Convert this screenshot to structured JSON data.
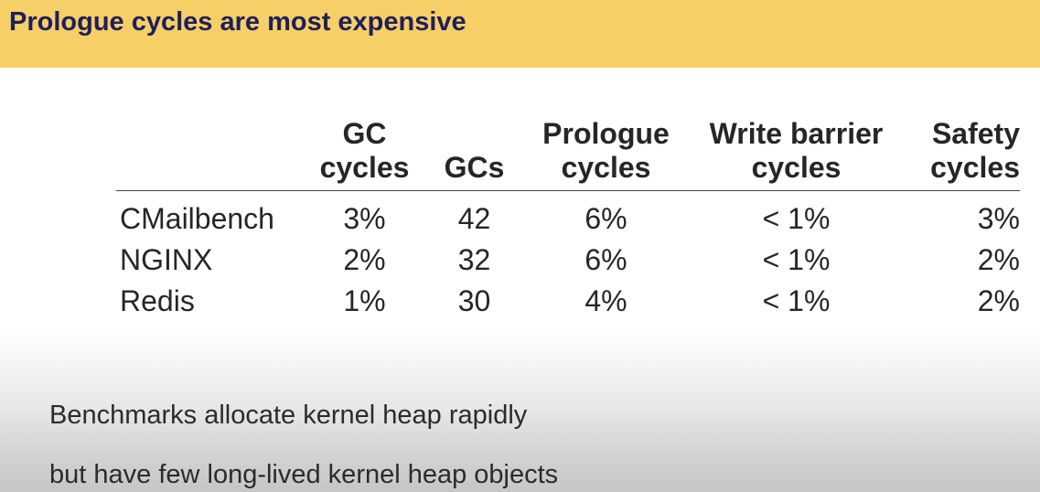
{
  "slide": {
    "title": "Prologue cycles are most expensive"
  },
  "table": {
    "headers": [
      {
        "line1": "",
        "line2": ""
      },
      {
        "line1": "GC",
        "line2": "cycles"
      },
      {
        "line1": "GCs",
        "line2": ""
      },
      {
        "line1": "Prologue",
        "line2": "cycles"
      },
      {
        "line1": "Write barrier",
        "line2": "cycles"
      },
      {
        "line1": "Safety",
        "line2": "cycles"
      }
    ],
    "rows": [
      [
        "CMailbench",
        "3%",
        "42",
        "6%",
        "< 1%",
        "3%"
      ],
      [
        "NGINX",
        "2%",
        "32",
        "6%",
        "< 1%",
        "2%"
      ],
      [
        "Redis",
        "1%",
        "30",
        "4%",
        "< 1%",
        "2%"
      ]
    ]
  },
  "notes": {
    "line1": "Benchmarks allocate kernel heap rapidly",
    "line2": "but have few long-lived kernel heap objects"
  }
}
